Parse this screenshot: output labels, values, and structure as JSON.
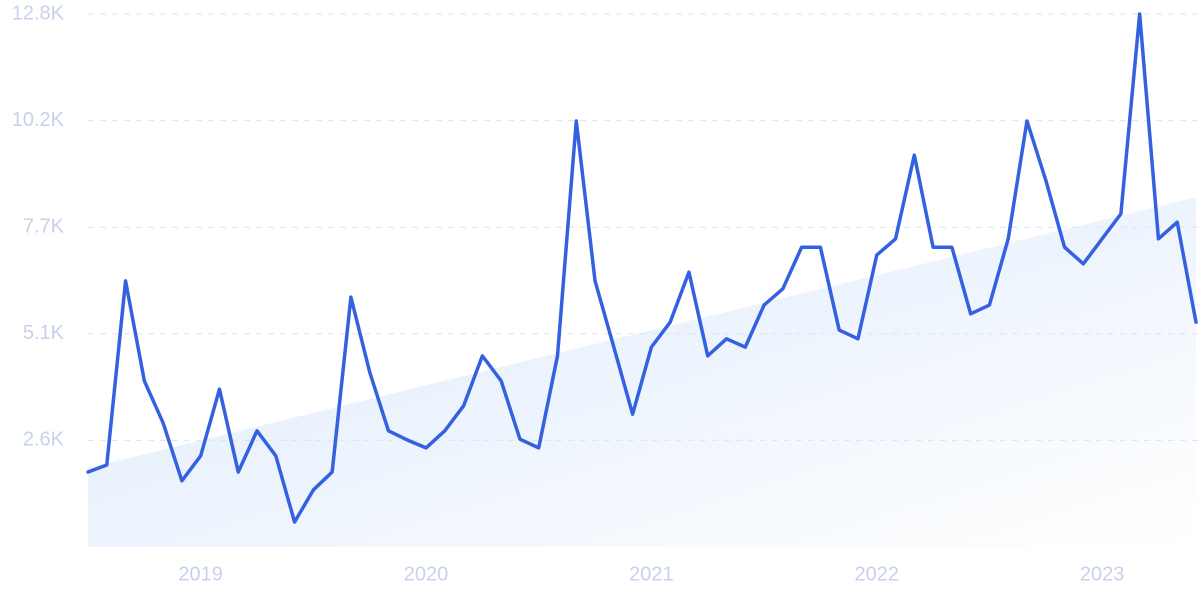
{
  "chart_data": {
    "type": "line",
    "categories": [
      null,
      null,
      null,
      null,
      null,
      null,
      "2019",
      null,
      null,
      null,
      null,
      null,
      null,
      null,
      null,
      null,
      null,
      null,
      "2020",
      null,
      null,
      null,
      null,
      null,
      null,
      null,
      null,
      null,
      null,
      null,
      "2021",
      null,
      null,
      null,
      null,
      null,
      null,
      null,
      null,
      null,
      null,
      null,
      "2022",
      null,
      null,
      null,
      null,
      null,
      null,
      null,
      null,
      null,
      null,
      null,
      "2023",
      null,
      null,
      null,
      null,
      null
    ],
    "series": [
      {
        "color": "#3461e0",
        "values": [
          1800,
          1970,
          6390,
          3990,
          2980,
          1590,
          2190,
          3790,
          1800,
          2790,
          2190,
          600,
          1370,
          1800,
          6000,
          4200,
          2790,
          2570,
          2380,
          2790,
          3390,
          4590,
          3990,
          2590,
          2380,
          4590,
          10230,
          6390,
          4800,
          3190,
          4800,
          5400,
          6600,
          4590,
          5000,
          4800,
          5810,
          6200,
          7200,
          7200,
          5210,
          5000,
          7010,
          7400,
          9410,
          7200,
          7200,
          5600,
          5810,
          7400,
          10230,
          8810,
          7200,
          6800,
          7400,
          8000,
          12800,
          7400,
          7800,
          5400
        ]
      }
    ],
    "trend": {
      "color": "#dce9fb",
      "values": [
        1900,
        8400
      ]
    },
    "ylim": [
      0,
      12800
    ],
    "yticks": [
      {
        "value": 2560,
        "label": "2.6K"
      },
      {
        "value": 5120,
        "label": "5.1K"
      },
      {
        "value": 7680,
        "label": "7.7K"
      },
      {
        "value": 10240,
        "label": "10.2K"
      },
      {
        "value": 12800,
        "label": "12.8K"
      }
    ],
    "grid": true
  }
}
